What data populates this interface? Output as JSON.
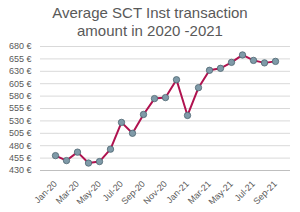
{
  "chart_data": {
    "type": "line",
    "title": "Average SCT Inst transaction amount in 2020 -2021",
    "categories": [
      "Jan-20",
      null,
      "Mar-20",
      null,
      "May-20",
      null,
      "Jul-20",
      null,
      "Sep-20",
      null,
      "Nov-20",
      null,
      "Jan-21",
      null,
      "Mar-21",
      null,
      "May-21",
      null,
      "Jul-21",
      null,
      "Sep-21"
    ],
    "values": [
      460,
      450,
      467,
      445,
      448,
      473,
      527,
      505,
      543,
      575,
      577,
      613,
      541,
      597,
      632,
      636,
      648,
      663,
      652,
      647,
      650
    ],
    "color": "#b0124f",
    "marker": "circle",
    "ylim": [
      430,
      680
    ],
    "yticks": [
      {
        "value": 430,
        "label": "430 €"
      },
      {
        "value": 455,
        "label": "455 €"
      },
      {
        "value": 480,
        "label": "480 €"
      },
      {
        "value": 505,
        "label": "505 €"
      },
      {
        "value": 530,
        "label": "530 €"
      },
      {
        "value": 555,
        "label": "555 €"
      },
      {
        "value": 580,
        "label": "580 €"
      },
      {
        "value": 605,
        "label": "605 €"
      },
      {
        "value": 630,
        "label": "630 €"
      },
      {
        "value": 655,
        "label": "655 €"
      },
      {
        "value": 680,
        "label": "680 €"
      }
    ],
    "grid": true
  }
}
